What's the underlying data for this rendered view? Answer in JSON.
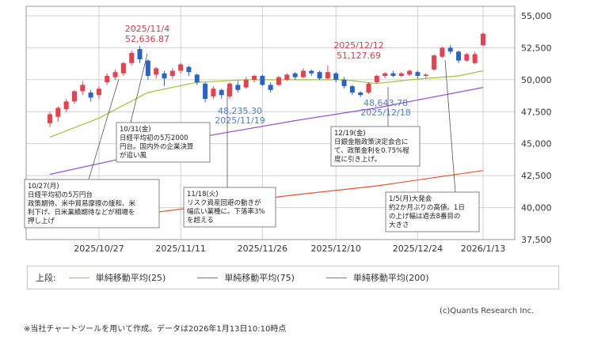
{
  "chart_data": {
    "type": "candlestick",
    "y_ticks": [
      "55,000",
      "52,500",
      "50,000",
      "47,500",
      "45,000",
      "42,500",
      "40,000",
      "37,500"
    ],
    "ylim": [
      37500,
      55000
    ],
    "x_ticks": [
      "2025/10/27",
      "2025/11/11",
      "2025/11/26",
      "2025/12/10",
      "2025/12/24",
      "2026/1/13"
    ],
    "sessions": 54,
    "x_tick_sessions": [
      6,
      16,
      26,
      35,
      45,
      53
    ],
    "candles": [
      {
        "o": 46600,
        "c": 47300,
        "h": 47500,
        "l": 46300
      },
      {
        "o": 47100,
        "c": 47800,
        "h": 47900,
        "l": 46700
      },
      {
        "o": 47700,
        "c": 48300,
        "h": 48500,
        "l": 47500
      },
      {
        "o": 48300,
        "c": 49100,
        "h": 49200,
        "l": 48100
      },
      {
        "o": 49100,
        "c": 49600,
        "h": 49900,
        "l": 48800
      },
      {
        "o": 49000,
        "c": 48600,
        "h": 49200,
        "l": 48300
      },
      {
        "o": 48800,
        "c": 49300,
        "h": 49500,
        "l": 48500
      },
      {
        "o": 49800,
        "c": 50300,
        "h": 50500,
        "l": 49600
      },
      {
        "o": 50200,
        "c": 50600,
        "h": 50800,
        "l": 50000
      },
      {
        "o": 50500,
        "c": 51300,
        "h": 51400,
        "l": 50300
      },
      {
        "o": 51300,
        "c": 52100,
        "h": 52300,
        "l": 51100
      },
      {
        "o": 52400,
        "c": 51600,
        "h": 52636.87,
        "l": 51300
      },
      {
        "o": 51500,
        "c": 50300,
        "h": 51600,
        "l": 50000
      },
      {
        "o": 50400,
        "c": 50900,
        "h": 51000,
        "l": 50100
      },
      {
        "o": 50500,
        "c": 50100,
        "h": 50700,
        "l": 49500
      },
      {
        "o": 50300,
        "c": 50700,
        "h": 50900,
        "l": 50100
      },
      {
        "o": 50700,
        "c": 51200,
        "h": 51300,
        "l": 50500
      },
      {
        "o": 51000,
        "c": 50600,
        "h": 51100,
        "l": 50300
      },
      {
        "o": 50400,
        "c": 49800,
        "h": 50500,
        "l": 49600
      },
      {
        "o": 49700,
        "c": 48500,
        "h": 49800,
        "l": 48235.3
      },
      {
        "o": 48700,
        "c": 49300,
        "h": 49500,
        "l": 48500
      },
      {
        "o": 49200,
        "c": 48800,
        "h": 49300,
        "l": 48500
      },
      {
        "o": 48700,
        "c": 49700,
        "h": 49800,
        "l": 48500
      },
      {
        "o": 49600,
        "c": 49200,
        "h": 49900,
        "l": 49000
      },
      {
        "o": 49400,
        "c": 50000,
        "h": 50200,
        "l": 49300
      },
      {
        "o": 50000,
        "c": 50300,
        "h": 50400,
        "l": 49800
      },
      {
        "o": 50300,
        "c": 49600,
        "h": 50400,
        "l": 49500
      },
      {
        "o": 49600,
        "c": 49200,
        "h": 49800,
        "l": 49000
      },
      {
        "o": 49600,
        "c": 50200,
        "h": 50300,
        "l": 49500
      },
      {
        "o": 50000,
        "c": 50400,
        "h": 50500,
        "l": 49900
      },
      {
        "o": 50500,
        "c": 50200,
        "h": 50600,
        "l": 50000
      },
      {
        "o": 50200,
        "c": 50700,
        "h": 50900,
        "l": 50100
      },
      {
        "o": 50700,
        "c": 50500,
        "h": 50800,
        "l": 50300
      },
      {
        "o": 50600,
        "c": 50100,
        "h": 50700,
        "l": 50000
      },
      {
        "o": 50100,
        "c": 50600,
        "h": 51127.69,
        "l": 50000
      },
      {
        "o": 50500,
        "c": 50000,
        "h": 50600,
        "l": 49800
      },
      {
        "o": 50000,
        "c": 49500,
        "h": 50200,
        "l": 49300
      },
      {
        "o": 49500,
        "c": 49000,
        "h": 49600,
        "l": 48800
      },
      {
        "o": 49000,
        "c": 48800,
        "h": 49100,
        "l": 48643.78
      },
      {
        "o": 49000,
        "c": 49700,
        "h": 49800,
        "l": 48900
      },
      {
        "o": 49800,
        "c": 50300,
        "h": 50400,
        "l": 49700
      },
      {
        "o": 50300,
        "c": 50500,
        "h": 50600,
        "l": 50100
      },
      {
        "o": 50500,
        "c": 50300,
        "h": 50700,
        "l": 50200
      },
      {
        "o": 50300,
        "c": 50500,
        "h": 50600,
        "l": 50200
      },
      {
        "o": 50400,
        "c": 50700,
        "h": 50800,
        "l": 50300
      },
      {
        "o": 50600,
        "c": 50300,
        "h": 50700,
        "l": 50100
      },
      {
        "o": 50300,
        "c": 50400,
        "h": 50500,
        "l": 50100
      },
      {
        "o": 50800,
        "c": 51900,
        "h": 52000,
        "l": 50700
      },
      {
        "o": 51800,
        "c": 52500,
        "h": 52600,
        "l": 51700
      },
      {
        "o": 52500,
        "c": 52200,
        "h": 52700,
        "l": 52000
      },
      {
        "o": 52200,
        "c": 51500,
        "h": 52300,
        "l": 51300
      },
      {
        "o": 51500,
        "c": 52000,
        "h": 52100,
        "l": 51400
      },
      {
        "o": 51300,
        "c": 52000,
        "h": 52200,
        "l": 51200
      },
      {
        "o": 52700,
        "c": 53600,
        "h": 53700,
        "l": 52600
      }
    ],
    "moving_averages": [
      {
        "name": "単純移動平均(25)",
        "color": "#9ac63a",
        "points": [
          [
            0,
            45500
          ],
          [
            6,
            47000
          ],
          [
            12,
            49000
          ],
          [
            18,
            49800
          ],
          [
            24,
            50000
          ],
          [
            30,
            50000
          ],
          [
            36,
            50000
          ],
          [
            40,
            49700
          ],
          [
            44,
            50000
          ],
          [
            50,
            50300
          ],
          [
            53,
            50700
          ]
        ]
      },
      {
        "name": "単純移動平均(75)",
        "color": "#9a4fd6",
        "points": [
          [
            0,
            42600
          ],
          [
            10,
            44000
          ],
          [
            20,
            45700
          ],
          [
            30,
            46800
          ],
          [
            40,
            47800
          ],
          [
            53,
            49400
          ]
        ]
      },
      {
        "name": "単純移動平均(200)",
        "color": "#e8532e",
        "points": [
          [
            0,
            38700
          ],
          [
            10,
            39400
          ],
          [
            20,
            40200
          ],
          [
            30,
            41000
          ],
          [
            40,
            41700
          ],
          [
            53,
            42900
          ]
        ]
      }
    ],
    "peaks": [
      {
        "date": "2025/11/4",
        "value": "52,636.87"
      },
      {
        "date": "2025/12/12",
        "value": "51,127.69"
      }
    ],
    "troughs": [
      {
        "value": "48,235.30",
        "date": "2025/11/19"
      },
      {
        "value": "48,643.78",
        "date": "2025/12/18"
      }
    ],
    "annotations": [
      {
        "lines": [
          "10/27(月)",
          "日経平均初の5万円台",
          "政策期待、米中貿易摩擦の緩和、米",
          "利下げ、日米業績期待などが相場を",
          "押し上げ"
        ]
      },
      {
        "lines": [
          "10/31(金)",
          "日経平均初の5万2000",
          "円台。国内外の企業決算",
          "が追い風"
        ]
      },
      {
        "lines": [
          "11/18(火)",
          "リスク資産回避の動きが",
          "幅広い業種に。下落率3%",
          "を超える"
        ]
      },
      {
        "lines": [
          "12/19(金)",
          "日銀金融政策決定会合に",
          "て、政策金利を0.75%程",
          "度に引き上げ。"
        ]
      },
      {
        "lines": [
          "1/5(月)大発会",
          "約2か月ぶりの高値。1日",
          "の上げ幅は過去8番目の",
          "大きさ"
        ]
      }
    ],
    "colors": {
      "up": "#e8404f",
      "down": "#2a64c8",
      "grid": "#d0d0d0"
    }
  },
  "legend": {
    "label": "上段:",
    "items": [
      {
        "name": "単純移動平均(25)",
        "color": "#9ac63a"
      },
      {
        "name": "単純移動平均(75)",
        "color": "#9a4fd6"
      },
      {
        "name": "単純移動平均(200)",
        "color": "#e8532e"
      }
    ]
  },
  "credit": "(c)Quants Research Inc.",
  "footnote": "※当社チャートツールを用いて作成。データは2026年1月13日10:10時点"
}
